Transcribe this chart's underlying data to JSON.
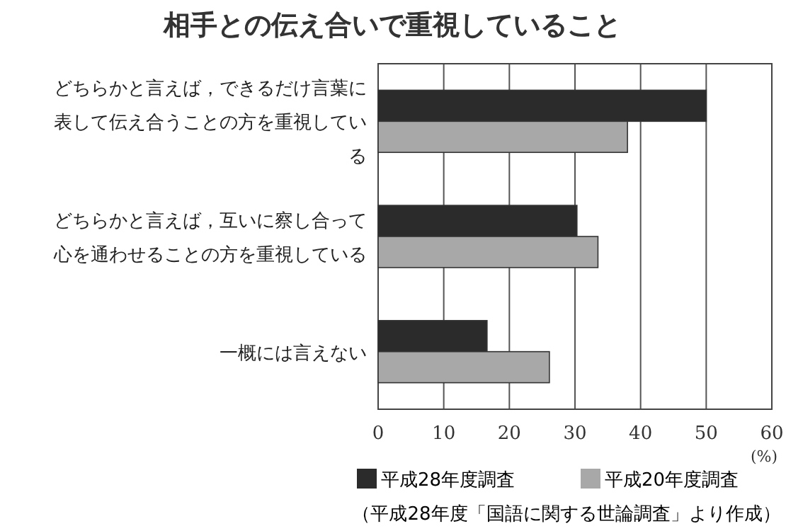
{
  "chart_data": {
    "type": "bar",
    "orientation": "horizontal",
    "title": "相手との伝え合いで重視していること",
    "categories": [
      "どちらかと言えば，できるだけ言葉に表して伝え合うことの方を重視している",
      "どちらかと言えば，互いに察し合って心を通わせることの方を重視している",
      "一概には言えない"
    ],
    "series": [
      {
        "name": "平成28年度調査",
        "color": "#2b2b2b",
        "values": [
          50.0,
          30.3,
          16.6
        ]
      },
      {
        "name": "平成20年度調査",
        "color": "#a8a8a8",
        "values": [
          38.0,
          33.5,
          26.1
        ]
      }
    ],
    "xlim": [
      0,
      60
    ],
    "xticks": [
      0,
      10,
      20,
      30,
      40,
      50,
      60
    ],
    "xlabel": "(%)",
    "grid": "x",
    "legend": "bottom",
    "annotations": [
      "（平成28年度「国語に関する世論調査」より作成）"
    ]
  }
}
